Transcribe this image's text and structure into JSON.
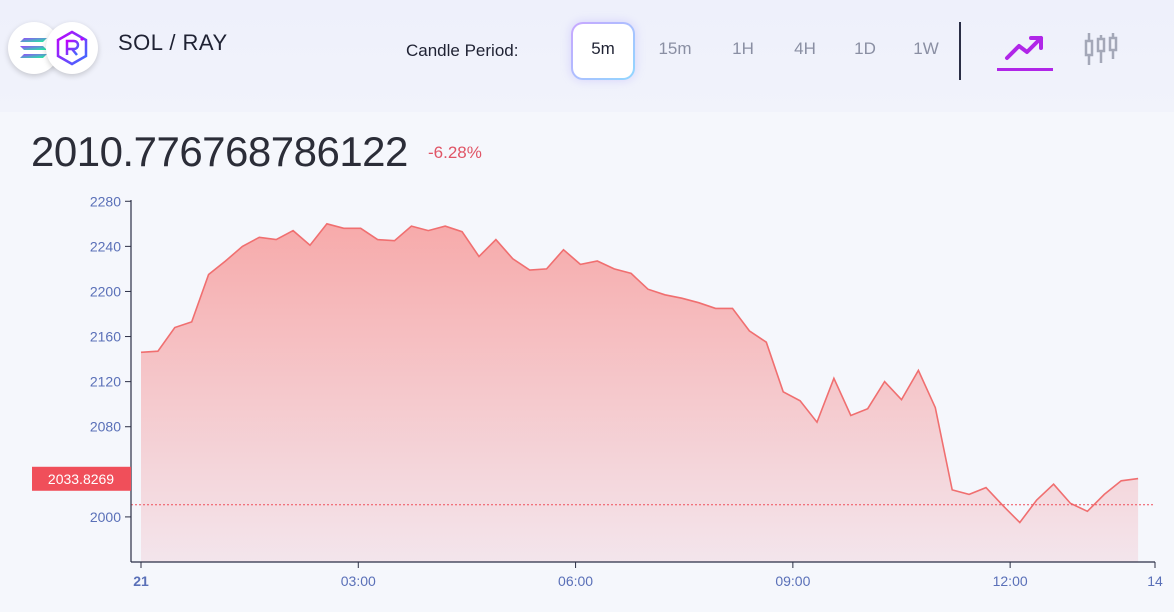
{
  "pair": {
    "title": "SOL / RAY",
    "base_icon": "solana-icon",
    "quote_icon": "raydium-icon"
  },
  "period": {
    "label": "Candle Period:",
    "options": [
      "5m",
      "15m",
      "1H",
      "4H",
      "1D",
      "1W"
    ],
    "selected": "5m"
  },
  "view": {
    "line_icon": "line-chart-icon",
    "candle_icon": "candlestick-icon",
    "active": "line",
    "accent": "#b026e8"
  },
  "price": {
    "value": "2010.776768786122",
    "change": "-6.28%"
  },
  "colors": {
    "line": "#f06f70",
    "fill_top": "#f7a6a6",
    "fill_bottom": "#f3e3ea",
    "tag": "#f04f5a",
    "axis": "#5a70b8"
  },
  "chart_data": {
    "type": "area",
    "title": "",
    "xlabel": "",
    "ylabel": "",
    "ylim": [
      1960,
      2290
    ],
    "yticks": [
      "2280",
      "2240",
      "2200",
      "2160",
      "2120",
      "2080",
      "2000"
    ],
    "xticks": [
      "21",
      "03:00",
      "06:00",
      "09:00",
      "12:00",
      "14"
    ],
    "xlim": [
      "00:00",
      "14:00"
    ],
    "current_price_label": "2033.8269",
    "reference_line": 2010.78,
    "grid": false,
    "series": [
      {
        "x": [
          "00:00",
          "00:14",
          "00:28",
          "00:42",
          "00:56",
          "01:10",
          "01:24",
          "01:38",
          "01:52",
          "02:06",
          "02:20",
          "02:34",
          "02:48",
          "03:02",
          "03:16",
          "03:30",
          "03:44",
          "03:58",
          "04:12",
          "04:26",
          "04:40",
          "04:54",
          "05:08",
          "05:22",
          "05:36",
          "05:50",
          "06:04",
          "06:18",
          "06:32",
          "06:46",
          "07:00",
          "07:14",
          "07:28",
          "07:42",
          "07:56",
          "08:10",
          "08:24",
          "08:38",
          "08:52",
          "09:06",
          "09:20",
          "09:34",
          "09:48",
          "10:02",
          "10:16",
          "10:30",
          "10:44",
          "10:58",
          "11:12",
          "11:26",
          "11:40",
          "11:54",
          "12:08",
          "12:22",
          "12:36",
          "12:50",
          "13:04",
          "13:18",
          "13:32",
          "13:46"
        ],
        "values": [
          2146,
          2147,
          2168,
          2173,
          2215,
          2227,
          2240,
          2248,
          2246,
          2254,
          2241,
          2260,
          2256,
          2256,
          2246,
          2245,
          2258,
          2254,
          2258,
          2253,
          2231,
          2246,
          2229,
          2219,
          2220,
          2237,
          2224,
          2227,
          2220,
          2216,
          2202,
          2197,
          2194,
          2190,
          2185,
          2185,
          2165,
          2155,
          2111,
          2103,
          2084,
          2123,
          2090,
          2096,
          2120,
          2104,
          2130,
          2097,
          2024,
          2020,
          2026,
          2010,
          1995,
          2015,
          2029,
          2012,
          2005,
          2020,
          2032,
          2034
        ]
      }
    ]
  }
}
